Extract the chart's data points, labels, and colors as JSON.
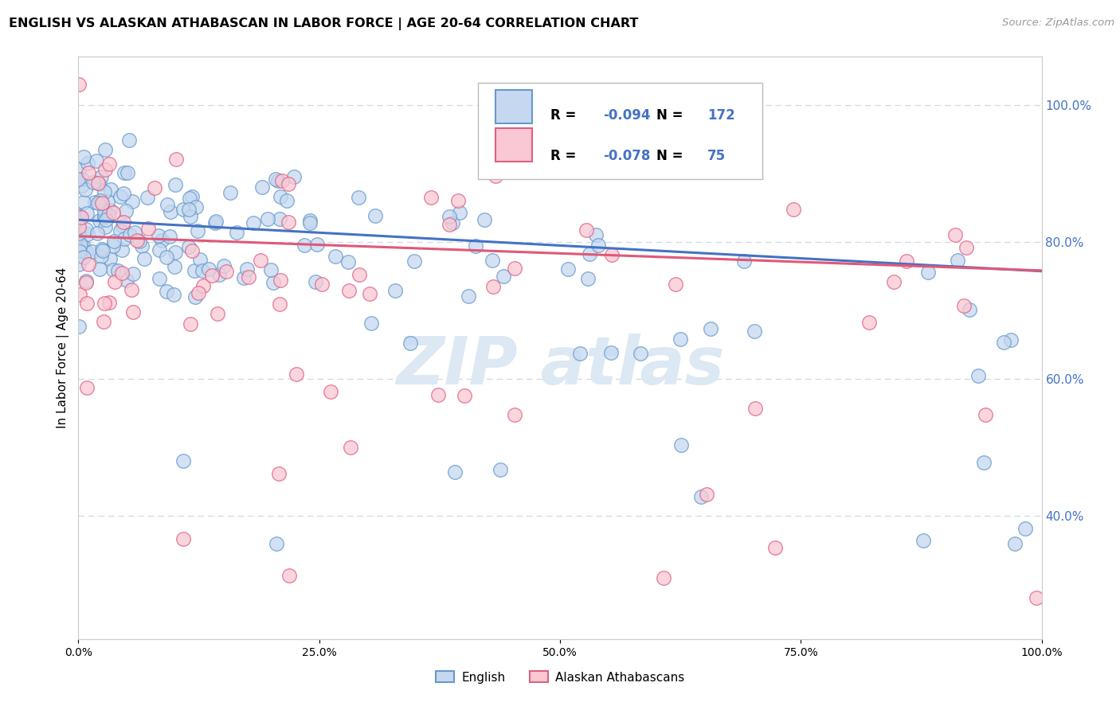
{
  "title": "ENGLISH VS ALASKAN ATHABASCAN IN LABOR FORCE | AGE 20-64 CORRELATION CHART",
  "source": "Source: ZipAtlas.com",
  "ylabel": "In Labor Force | Age 20-64",
  "xlim": [
    0.0,
    1.0
  ],
  "ylim": [
    0.22,
    1.07
  ],
  "english_R": -0.094,
  "english_N": 172,
  "athabascan_R": -0.078,
  "athabascan_N": 75,
  "english_fill_color": "#c5d8f0",
  "english_edge_color": "#6699cc",
  "athabascan_fill_color": "#f9c8d4",
  "athabascan_edge_color": "#e06080",
  "english_line_color": "#4472c4",
  "athabascan_line_color": "#e05878",
  "label_color": "#4472c4",
  "watermark_color": "#dce8f4",
  "background_color": "#ffffff",
  "grid_color": "#d0d8e8",
  "right_tick_color": "#4472c4",
  "eng_intercept": 0.832,
  "eng_slope": -0.075,
  "ath_intercept": 0.808,
  "ath_slope": -0.05
}
